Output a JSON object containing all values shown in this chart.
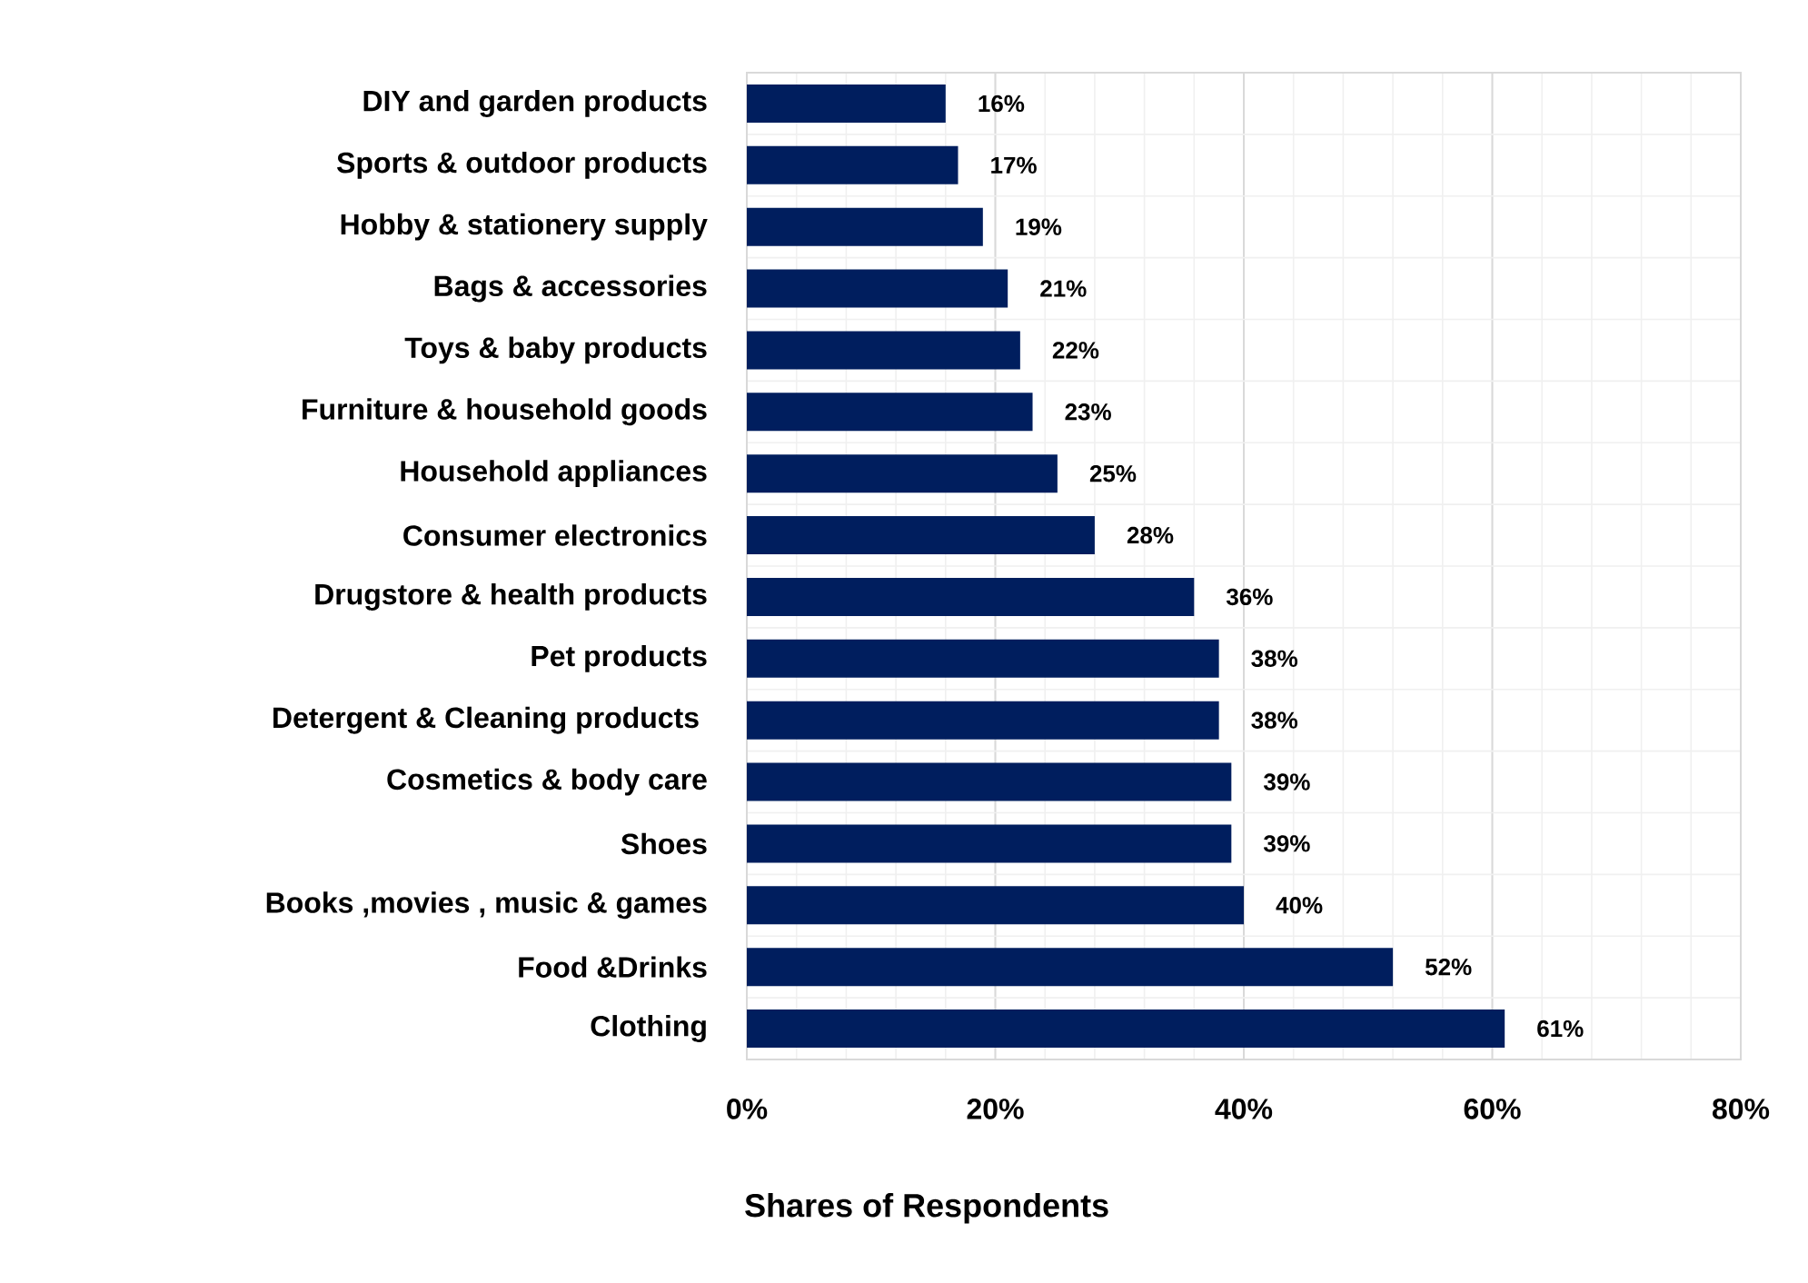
{
  "chart_data": {
    "type": "bar",
    "orientation": "horizontal",
    "xlabel": "Shares of Respondents",
    "categories": [
      "DIY and garden products",
      "Sports & outdoor products",
      "Hobby & stationery supply",
      "Bags & accessories",
      "Toys & baby products",
      "Furniture &  household goods",
      "Household appliances",
      "Consumer electronics",
      "Drugstore & health products",
      "Pet products",
      "Detergent & Cleaning products ",
      "Cosmetics & body care",
      "Shoes",
      "Books ,movies , music & games",
      "Food &Drinks",
      "Clothing"
    ],
    "values": [
      16,
      17,
      19,
      21,
      22,
      23,
      25,
      28,
      36,
      38,
      38,
      39,
      39,
      40,
      52,
      61
    ],
    "value_labels": [
      "16%",
      "17%",
      "19%",
      "21%",
      "22%",
      "23%",
      "25%",
      "28%",
      "36%",
      "38%",
      "38%",
      "39%",
      "39%",
      "40%",
      "52%",
      "61%"
    ],
    "color": "#001e5e",
    "xlim": [
      0,
      80
    ],
    "xticks": [
      {
        "value": 0,
        "label": "0%"
      },
      {
        "value": 20,
        "label": "20%"
      },
      {
        "value": 40,
        "label": "40%"
      },
      {
        "value": 60,
        "label": "60%"
      },
      {
        "value": 80,
        "label": "80%"
      }
    ],
    "grid": true
  }
}
